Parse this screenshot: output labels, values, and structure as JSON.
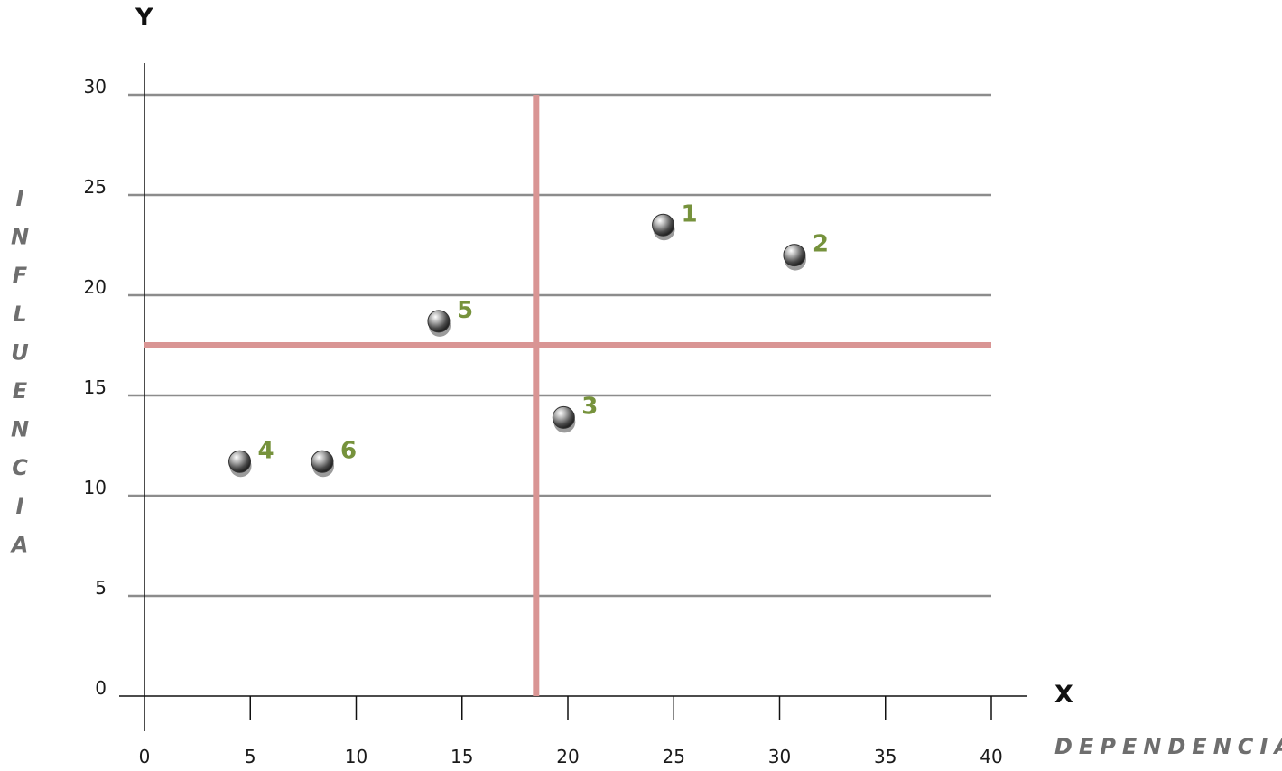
{
  "chart_data": {
    "type": "scatter",
    "x_axis_letter": "X",
    "y_axis_letter": "Y",
    "xlabel": "DEPENDENCIA",
    "ylabel": "INFLUENCIA",
    "xlim": [
      0,
      40
    ],
    "ylim": [
      0,
      30
    ],
    "x_ticks": [
      0,
      5,
      10,
      15,
      20,
      25,
      30,
      35,
      40
    ],
    "y_ticks": [
      0,
      5,
      10,
      15,
      20,
      25,
      30
    ],
    "grid": "horizontal",
    "quadrant_lines": {
      "x": 18.5,
      "y": 17.5,
      "color": "#d99594"
    },
    "point_color": "#555555",
    "label_color": "#76923c",
    "points": [
      {
        "label": "1",
        "x": 24.5,
        "y": 23.5
      },
      {
        "label": "2",
        "x": 30.7,
        "y": 22.0
      },
      {
        "label": "3",
        "x": 19.8,
        "y": 13.9
      },
      {
        "label": "4",
        "x": 4.5,
        "y": 11.7
      },
      {
        "label": "5",
        "x": 13.9,
        "y": 18.7
      },
      {
        "label": "6",
        "x": 8.4,
        "y": 11.7
      }
    ]
  }
}
